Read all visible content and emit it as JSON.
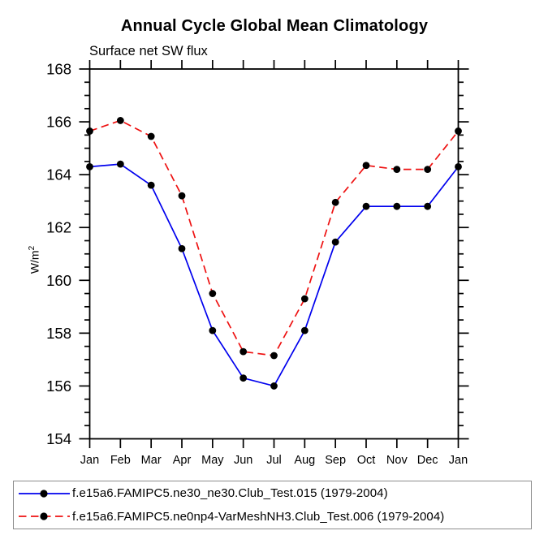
{
  "title": "Annual Cycle Global Mean Climatology",
  "subtitle": "Surface net SW flux",
  "y_axis_label": {
    "text": "W/m",
    "superscript": "2"
  },
  "chart_data": {
    "type": "line",
    "title": "Annual Cycle Global Mean Climatology",
    "subtitle": "Surface net SW flux",
    "ylabel": "W/m^2",
    "x_categories": [
      "Jan",
      "Feb",
      "Mar",
      "Apr",
      "May",
      "Jun",
      "Jul",
      "Aug",
      "Sep",
      "Oct",
      "Nov",
      "Dec",
      "Jan"
    ],
    "ylim": [
      154,
      168
    ],
    "ytick_major": [
      154,
      156,
      158,
      160,
      162,
      164,
      166,
      168
    ],
    "ytick_labels": [
      "154",
      "156",
      "158",
      "160",
      "162",
      "164",
      "166",
      "168"
    ],
    "ytick_minor_step": 0.5,
    "grid": false,
    "legend_position": "bottom-left-box",
    "series": [
      {
        "name": "f.e15a6.FAMIPC5.ne30_ne30.Club_Test.015 (1979-2004)",
        "color": "#0000ee",
        "line_style": "solid",
        "marker": "circle",
        "marker_color": "#000000",
        "values": [
          164.3,
          164.4,
          163.6,
          161.2,
          158.1,
          156.3,
          156.0,
          158.1,
          161.45,
          162.8,
          162.8,
          162.8,
          164.3
        ]
      },
      {
        "name": "f.e15a6.FAMIPC5.ne0np4-VarMeshNH3.Club_Test.006 (1979-2004)",
        "color": "#ee1111",
        "line_style": "dashed",
        "marker": "circle",
        "marker_color": "#000000",
        "values": [
          165.65,
          166.05,
          165.45,
          163.2,
          159.5,
          157.3,
          157.15,
          159.3,
          162.95,
          164.35,
          164.2,
          164.2,
          165.65
        ]
      }
    ]
  },
  "colors": {
    "axis": "#000000",
    "text": "#000000",
    "legend_border": "#8c8c8c",
    "background": "#ffffff"
  }
}
